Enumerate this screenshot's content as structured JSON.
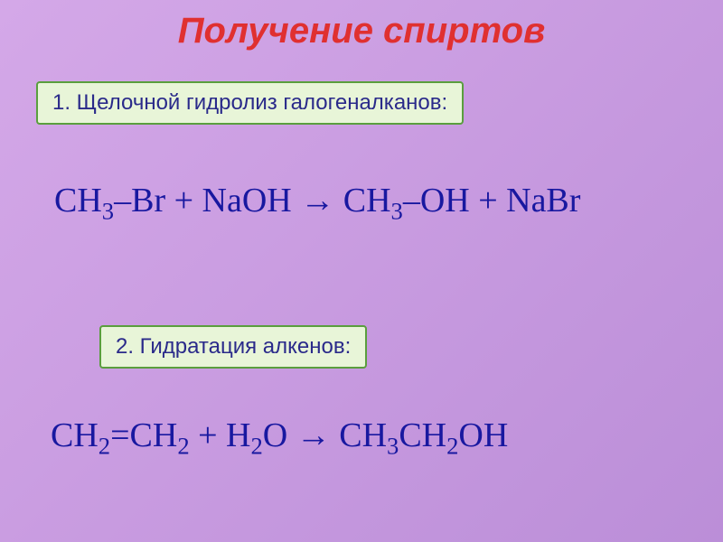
{
  "title": "Получение спиртов",
  "section1": {
    "label": "1. Щелочной гидролиз галогеналканов:"
  },
  "section2": {
    "label": "2. Гидратация алкенов:"
  },
  "equation1": {
    "parts": [
      "CH",
      "3",
      "–Br + NaOH ",
      "→",
      " CH",
      "3",
      "–OH + NaBr"
    ]
  },
  "equation2": {
    "parts": [
      "CH",
      "2",
      "=CH",
      "2",
      " + H",
      "2",
      "O   ",
      "→",
      " CH",
      "3",
      "CH",
      "2",
      "OH"
    ]
  },
  "colors": {
    "title": "#e03030",
    "box_border": "#5a9e3e",
    "box_bg": "#e8f5d8",
    "box_text": "#2a2a8a",
    "equation": "#1818a0",
    "bg_start": "#d4a8e8",
    "bg_end": "#bb8ed8"
  },
  "fonts": {
    "title_size": 40,
    "box_size": 24,
    "eq_size": 38
  }
}
